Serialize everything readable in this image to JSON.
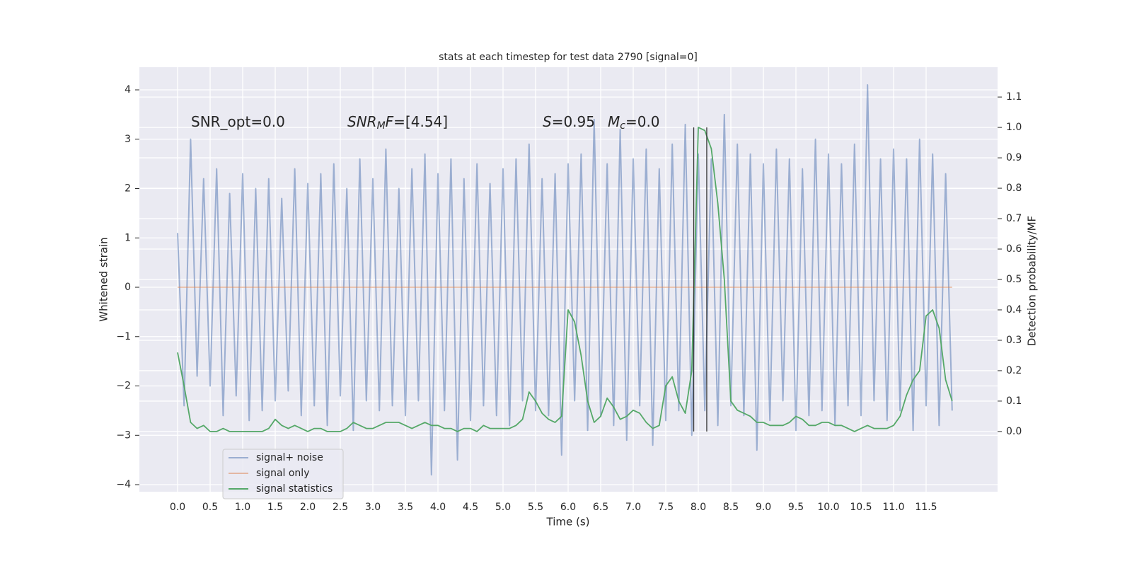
{
  "chart_data": {
    "type": "line",
    "title": "stats at each timestep for test data 2790 [signal=0]",
    "xlabel": "Time (s)",
    "ylabel": "Whitened strain",
    "y2label": "Detection probability/MF",
    "annotations": [
      [
        {
          "text": "SNR_opt=0.0",
          "style": "normal"
        }
      ],
      [
        {
          "text": "SNR",
          "style": "italic"
        },
        {
          "text": "M",
          "style": "sub"
        },
        {
          "text": "F",
          "style": "italic"
        },
        {
          "text": "=[4.54]",
          "style": "normal"
        }
      ],
      [
        {
          "text": "S",
          "style": "italic"
        },
        {
          "text": "=0.95",
          "style": "normal"
        }
      ],
      [
        {
          "text": "M",
          "style": "italic"
        },
        {
          "text": "c",
          "style": "sub"
        },
        {
          "text": "=0.0",
          "style": "normal"
        }
      ]
    ],
    "x": [
      0.0,
      0.1,
      0.2,
      0.3,
      0.4,
      0.5,
      0.6,
      0.7,
      0.8,
      0.9,
      1.0,
      1.1,
      1.2,
      1.3,
      1.4,
      1.5,
      1.6,
      1.7,
      1.8,
      1.9,
      2.0,
      2.1,
      2.2,
      2.3,
      2.4,
      2.5,
      2.6,
      2.7,
      2.8,
      2.9,
      3.0,
      3.1,
      3.2,
      3.3,
      3.4,
      3.5,
      3.6,
      3.7,
      3.8,
      3.9,
      4.0,
      4.1,
      4.2,
      4.3,
      4.4,
      4.5,
      4.6,
      4.7,
      4.8,
      4.9,
      5.0,
      5.1,
      5.2,
      5.3,
      5.4,
      5.5,
      5.6,
      5.7,
      5.8,
      5.9,
      6.0,
      6.1,
      6.2,
      6.3,
      6.4,
      6.5,
      6.6,
      6.7,
      6.8,
      6.9,
      7.0,
      7.1,
      7.2,
      7.3,
      7.4,
      7.5,
      7.6,
      7.7,
      7.8,
      7.9,
      8.0,
      8.1,
      8.2,
      8.3,
      8.4,
      8.5,
      8.6,
      8.7,
      8.8,
      8.9,
      9.0,
      9.1,
      9.2,
      9.3,
      9.4,
      9.5,
      9.6,
      9.7,
      9.8,
      9.9,
      10.0,
      10.1,
      10.2,
      10.3,
      10.4,
      10.5,
      10.6,
      10.7,
      10.8,
      10.9,
      11.0,
      11.1,
      11.2,
      11.3,
      11.4,
      11.5,
      11.6,
      11.7,
      11.8,
      11.9
    ],
    "series": [
      {
        "name": "signal+ noise",
        "color": "#4c72b0",
        "opacity": 0.5,
        "axis": "y",
        "values": [
          1.1,
          -2.4,
          3.0,
          -1.8,
          2.2,
          -2.0,
          2.4,
          -2.6,
          1.9,
          -2.2,
          2.3,
          -2.7,
          2.0,
          -2.5,
          2.2,
          -2.3,
          1.8,
          -2.1,
          2.4,
          -2.6,
          2.1,
          -2.4,
          2.3,
          -2.8,
          2.5,
          -2.2,
          2.0,
          -2.9,
          2.6,
          -2.3,
          2.2,
          -2.5,
          2.8,
          -2.4,
          2.0,
          -2.6,
          2.4,
          -2.3,
          2.7,
          -3.8,
          2.3,
          -2.5,
          2.6,
          -3.5,
          2.2,
          -2.7,
          2.5,
          -2.4,
          2.1,
          -2.6,
          2.4,
          -2.8,
          2.6,
          -2.3,
          2.9,
          -2.5,
          2.2,
          -2.6,
          2.3,
          -3.4,
          2.5,
          -2.3,
          2.7,
          -2.9,
          3.4,
          -2.6,
          2.5,
          -2.8,
          3.2,
          -3.1,
          2.6,
          -2.4,
          2.8,
          -3.2,
          2.4,
          -2.7,
          2.9,
          -2.5,
          3.3,
          -3.0,
          2.7,
          -2.5,
          2.6,
          -2.8,
          3.5,
          -2.4,
          2.9,
          -2.6,
          2.7,
          -3.3,
          2.5,
          -2.7,
          2.8,
          -2.3,
          2.6,
          -2.9,
          2.4,
          -2.6,
          3.0,
          -2.5,
          2.7,
          -2.8,
          2.5,
          -2.4,
          2.9,
          -2.6,
          4.1,
          -2.3,
          2.6,
          -2.7,
          2.8,
          -2.5,
          2.6,
          -2.9,
          3.0,
          -2.4,
          2.7,
          -2.8,
          2.3,
          -2.5
        ]
      },
      {
        "name": "signal only",
        "color": "#dd8452",
        "opacity": 0.5,
        "axis": "y",
        "values": [
          0,
          0,
          0,
          0,
          0,
          0,
          0,
          0,
          0,
          0,
          0,
          0,
          0,
          0,
          0,
          0,
          0,
          0,
          0,
          0,
          0,
          0,
          0,
          0,
          0,
          0,
          0,
          0,
          0,
          0,
          0,
          0,
          0,
          0,
          0,
          0,
          0,
          0,
          0,
          0,
          0,
          0,
          0,
          0,
          0,
          0,
          0,
          0,
          0,
          0,
          0,
          0,
          0,
          0,
          0,
          0,
          0,
          0,
          0,
          0,
          0,
          0,
          0,
          0,
          0,
          0,
          0,
          0,
          0,
          0,
          0,
          0,
          0,
          0,
          0,
          0,
          0,
          0,
          0,
          0,
          0,
          0,
          0,
          0,
          0,
          0,
          0,
          0,
          0,
          0,
          0,
          0,
          0,
          0,
          0,
          0,
          0,
          0,
          0,
          0,
          0,
          0,
          0,
          0,
          0,
          0,
          0,
          0,
          0,
          0,
          0,
          0,
          0,
          0,
          0,
          0,
          0,
          0,
          0,
          0
        ]
      },
      {
        "name": "signal statistics",
        "color": "#55a868",
        "opacity": 1,
        "axis": "y2",
        "values": [
          0.26,
          0.15,
          0.03,
          0.01,
          0.02,
          0.0,
          0.0,
          0.01,
          0.0,
          0.0,
          0.0,
          0.0,
          0.0,
          0.0,
          0.01,
          0.04,
          0.02,
          0.01,
          0.02,
          0.01,
          0.0,
          0.01,
          0.01,
          0.0,
          0.0,
          0.0,
          0.01,
          0.03,
          0.02,
          0.01,
          0.01,
          0.02,
          0.03,
          0.03,
          0.03,
          0.02,
          0.01,
          0.02,
          0.03,
          0.02,
          0.02,
          0.01,
          0.01,
          0.0,
          0.01,
          0.01,
          0.0,
          0.02,
          0.01,
          0.01,
          0.01,
          0.01,
          0.02,
          0.04,
          0.13,
          0.1,
          0.06,
          0.04,
          0.03,
          0.05,
          0.4,
          0.36,
          0.25,
          0.1,
          0.03,
          0.05,
          0.11,
          0.08,
          0.04,
          0.05,
          0.07,
          0.06,
          0.03,
          0.01,
          0.02,
          0.15,
          0.18,
          0.1,
          0.06,
          0.2,
          1.0,
          0.99,
          0.93,
          0.75,
          0.5,
          0.1,
          0.07,
          0.06,
          0.05,
          0.03,
          0.03,
          0.02,
          0.02,
          0.02,
          0.03,
          0.05,
          0.04,
          0.02,
          0.02,
          0.03,
          0.03,
          0.02,
          0.02,
          0.01,
          0.0,
          0.01,
          0.02,
          0.01,
          0.01,
          0.01,
          0.02,
          0.05,
          0.12,
          0.17,
          0.2,
          0.38,
          0.4,
          0.34,
          0.17,
          0.1
        ]
      }
    ],
    "vlines": {
      "x": [
        7.93,
        8.13
      ],
      "axis": "y2",
      "ymin": 0.0,
      "ymax": 1.0,
      "color": "#333333"
    },
    "xlim": [
      -0.587,
      12.598
    ],
    "ylim": [
      -4.143,
      4.459
    ],
    "y2lim": [
      -0.198,
      1.198
    ],
    "xticks": [
      {
        "value": 0,
        "label": "0.0"
      },
      0.5,
      {
        "value": 1,
        "label": "1.0"
      },
      1.5,
      {
        "value": 2,
        "label": "2.0"
      },
      2.5,
      {
        "value": 3,
        "label": "3.0"
      },
      3.5,
      {
        "value": 4,
        "label": "4.0"
      },
      4.5,
      {
        "value": 5,
        "label": "5.0"
      },
      5.5,
      {
        "value": 6,
        "label": "6.0"
      },
      6.5,
      {
        "value": 7,
        "label": "7.0"
      },
      7.5,
      {
        "value": 8,
        "label": "8.0"
      },
      8.5,
      {
        "value": 9,
        "label": "9.0"
      },
      9.5,
      {
        "value": 10,
        "label": "10.0"
      },
      10.5,
      {
        "value": 11,
        "label": "11.0"
      },
      11.5
    ],
    "yticks": [
      {
        "value": -4,
        "label": "−4"
      },
      {
        "value": -3,
        "label": "−3"
      },
      {
        "value": -2,
        "label": "−2"
      },
      {
        "value": -1,
        "label": "−1"
      },
      0,
      1,
      2,
      3,
      4
    ],
    "y2ticks": [
      {
        "value": 0,
        "label": "0.0"
      },
      0.1,
      0.2,
      0.3,
      0.4,
      0.5,
      0.6,
      0.7,
      0.8,
      0.9,
      {
        "value": 1,
        "label": "1.0"
      },
      1.1
    ],
    "grid": true,
    "legend": "lower left",
    "background": "#eaeaf2"
  }
}
